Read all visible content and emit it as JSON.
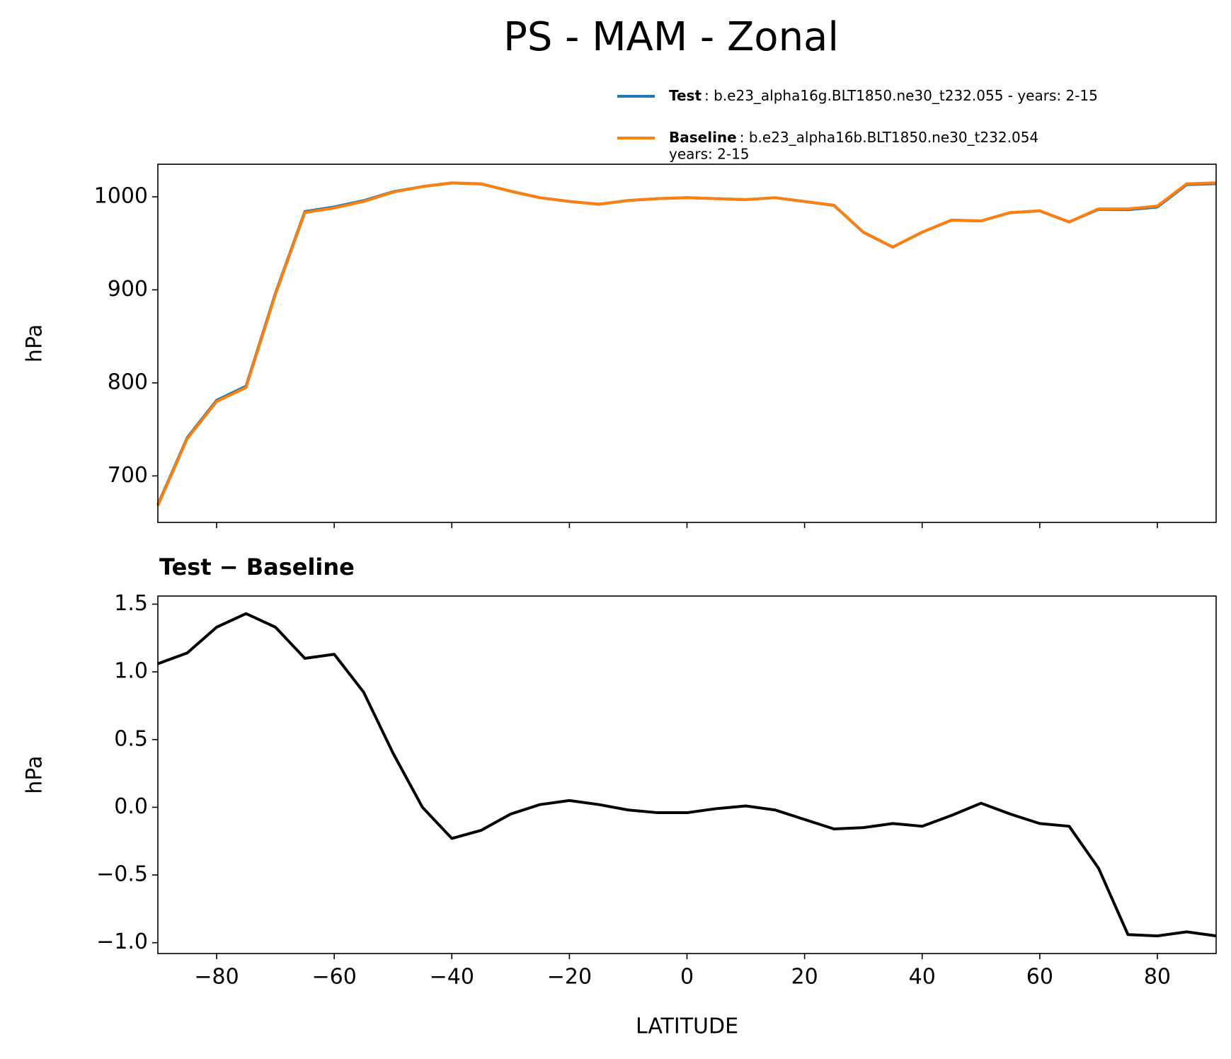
{
  "title": "PS - MAM - Zonal",
  "chart_data": [
    {
      "type": "line",
      "ylabel": "hPa",
      "x": [
        -90,
        -85,
        -80,
        -75,
        -70,
        -65,
        -60,
        -55,
        -50,
        -45,
        -40,
        -35,
        -30,
        -25,
        -20,
        -15,
        -10,
        -5,
        0,
        5,
        10,
        15,
        20,
        25,
        30,
        35,
        40,
        45,
        50,
        55,
        60,
        65,
        70,
        75,
        80,
        85,
        90
      ],
      "series": [
        {
          "name": "Test",
          "description": ": b.e23_alpha16g.BLT1850.ne30_t232.055 - years: 2-15",
          "color": "#1f77b4",
          "values": [
            669.1,
            741.1,
            781.3,
            796.4,
            896.3,
            984.1,
            989.1,
            995.9,
            1005.4,
            1011,
            1014.8,
            1013.8,
            1006,
            999,
            995,
            992,
            996,
            998,
            999,
            998,
            997,
            999,
            994.9,
            990.8,
            961.8,
            945.9,
            961.9,
            974.9,
            974,
            983,
            984.9,
            972.9,
            986.5,
            986.1,
            989,
            1013.1,
            1014.1
          ]
        },
        {
          "name": "Baseline",
          "description": ": b.e23_alpha16b.BLT1850.ne30_t232.054",
          "description2": "years: 2-15",
          "color": "#ff7f0e",
          "values": [
            668,
            740,
            780,
            795,
            895,
            983,
            988,
            995,
            1005,
            1011,
            1015,
            1014,
            1006,
            999,
            995,
            992,
            996,
            998,
            999,
            998,
            997,
            999,
            995,
            991,
            962,
            946,
            962,
            975,
            974,
            983,
            985,
            973,
            987,
            987,
            990,
            1014,
            1015
          ]
        }
      ],
      "xlim": [
        -90,
        90
      ],
      "xticks": [
        -80,
        -60,
        -40,
        -20,
        0,
        20,
        40,
        60,
        80
      ],
      "ylim": [
        650,
        1035
      ],
      "yticks": [
        700,
        800,
        900,
        1000
      ]
    },
    {
      "type": "line",
      "title": "Test − Baseline",
      "ylabel": "hPa",
      "xlabel": "LATITUDE",
      "x": [
        -90,
        -85,
        -80,
        -75,
        -70,
        -65,
        -60,
        -55,
        -50,
        -45,
        -40,
        -35,
        -30,
        -25,
        -20,
        -15,
        -10,
        -5,
        0,
        5,
        10,
        15,
        20,
        25,
        30,
        35,
        40,
        45,
        50,
        55,
        60,
        65,
        70,
        75,
        80,
        85,
        90
      ],
      "series": [
        {
          "color": "#000000",
          "values": [
            1.06,
            1.14,
            1.33,
            1.43,
            1.33,
            1.1,
            1.13,
            0.85,
            0.4,
            0.0,
            -0.23,
            -0.17,
            -0.05,
            0.02,
            0.05,
            0.02,
            -0.02,
            -0.04,
            -0.04,
            -0.01,
            0.01,
            -0.02,
            -0.09,
            -0.16,
            -0.15,
            -0.12,
            -0.14,
            -0.06,
            0.03,
            -0.05,
            -0.12,
            -0.14,
            -0.45,
            -0.94,
            -0.95,
            -0.92,
            -0.95
          ]
        }
      ],
      "xlim": [
        -90,
        90
      ],
      "xticks": [
        {
          "value": -80,
          "label": "−80"
        },
        {
          "value": -60,
          "label": "−60"
        },
        {
          "value": -40,
          "label": "−40"
        },
        {
          "value": -20,
          "label": "−20"
        },
        0,
        20,
        40,
        60,
        80
      ],
      "ylim": [
        -1.08,
        1.56
      ],
      "yticks": [
        {
          "value": -1,
          "label": "−1.0"
        },
        {
          "value": -0.5,
          "label": "−0.5"
        },
        {
          "value": 0,
          "label": "0.0"
        },
        0.5,
        {
          "value": 1,
          "label": "1.0"
        },
        1.5
      ]
    }
  ]
}
